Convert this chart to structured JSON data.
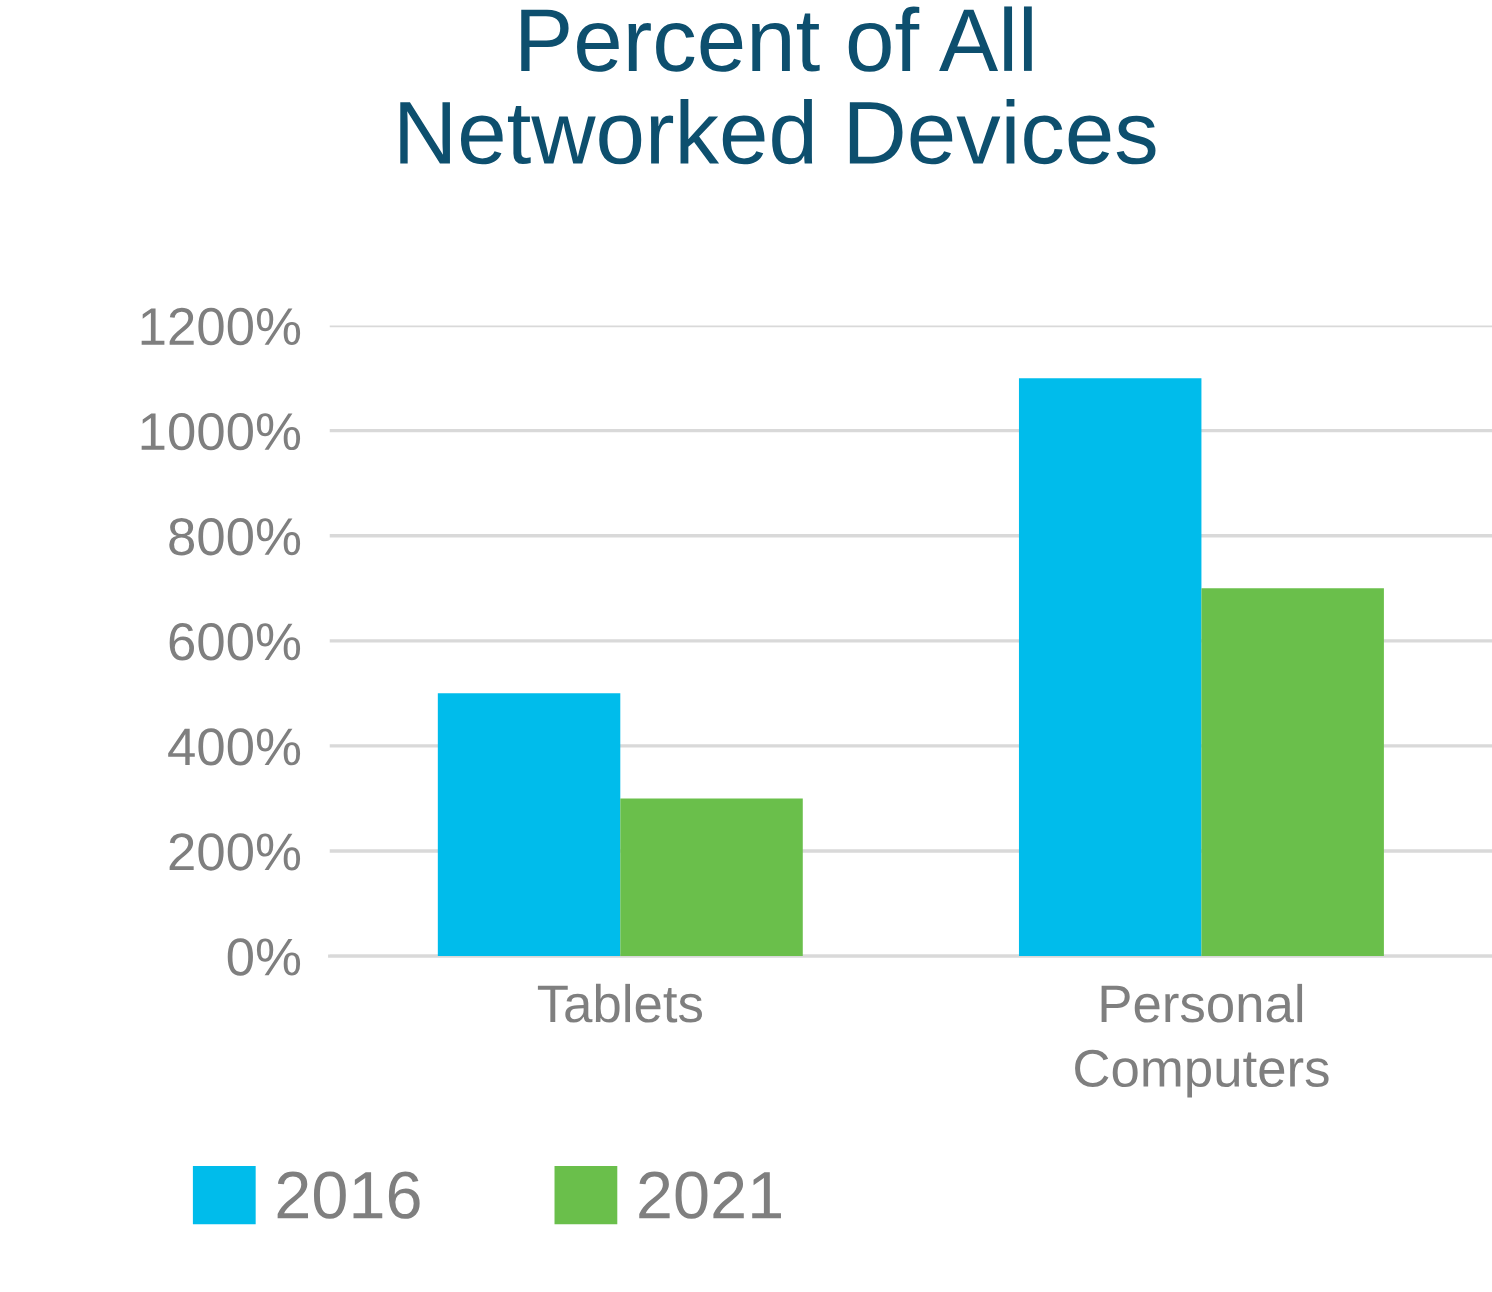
{
  "chart_data": {
    "type": "bar",
    "title": "Percent of All\nNetworked Devices",
    "categories": [
      "Tablets",
      "Personal\nComputers"
    ],
    "series": [
      {
        "name": "2016",
        "color": "#00bceb",
        "values": [
          500,
          1100
        ]
      },
      {
        "name": "2021",
        "color": "#6abf4b",
        "values": [
          300,
          700
        ]
      }
    ],
    "ylim": [
      0,
      1200
    ],
    "yticks": [
      {
        "value": 0,
        "label": "0%"
      },
      {
        "value": 200,
        "label": "200%"
      },
      {
        "value": 400,
        "label": "400%"
      },
      {
        "value": 600,
        "label": "600%"
      },
      {
        "value": 800,
        "label": "800%"
      },
      {
        "value": 1000,
        "label": "1000%"
      },
      {
        "value": 1200,
        "label": "1200%"
      }
    ],
    "grid": "y",
    "legend": "bottom"
  }
}
